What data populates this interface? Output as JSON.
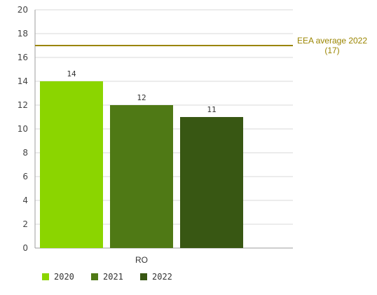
{
  "chart_data": {
    "type": "bar",
    "categories": [
      "RO"
    ],
    "series": [
      {
        "name": "2020",
        "values": [
          14
        ],
        "color": "#8bd500"
      },
      {
        "name": "2021",
        "values": [
          12
        ],
        "color": "#4f7915"
      },
      {
        "name": "2022",
        "values": [
          11
        ],
        "color": "#385713"
      }
    ],
    "ylim": [
      0,
      20
    ],
    "yticks": [
      0,
      2,
      4,
      6,
      8,
      10,
      12,
      14,
      16,
      18,
      20
    ],
    "grid": true,
    "legend_position": "bottom-left",
    "reference_line": {
      "value": 17,
      "label_line1": "EEA average 2022",
      "label_line2": "(17)",
      "color": "#9a8500"
    }
  }
}
